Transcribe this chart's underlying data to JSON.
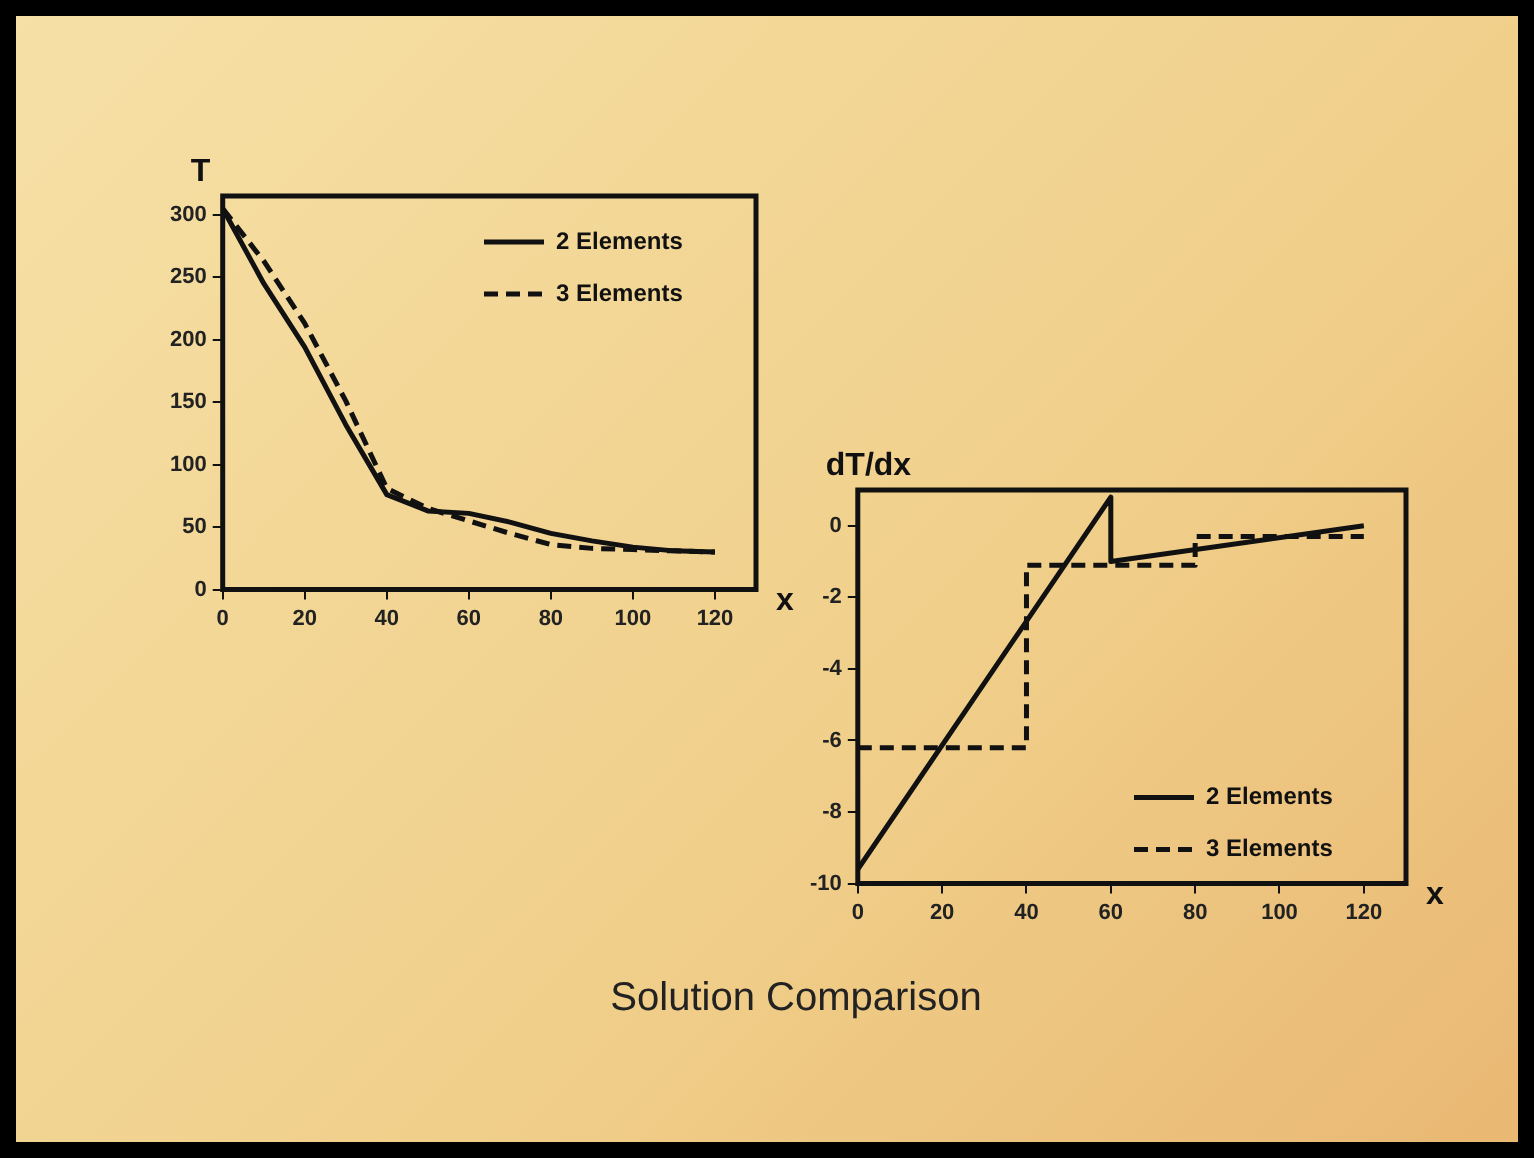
{
  "chart_data": [
    {
      "type": "line",
      "ylabel": "T",
      "xlabel": "x",
      "xlim": [
        0,
        130
      ],
      "xticks": [
        0,
        20,
        40,
        60,
        80,
        100,
        120
      ],
      "ylim": [
        0,
        315
      ],
      "yticks": [
        0,
        50,
        100,
        150,
        200,
        250,
        300
      ],
      "grid": false,
      "legend": "top right",
      "marker": "none",
      "series": [
        {
          "name": "2 Elements",
          "color": "#111111",
          "line_style": "solid",
          "x": [
            0,
            10,
            20,
            30,
            40,
            50,
            60,
            70,
            80,
            90,
            100,
            110,
            120
          ],
          "values": [
            305,
            245,
            194,
            132,
            76,
            63,
            61,
            54,
            45,
            39,
            34,
            31,
            30
          ]
        },
        {
          "name": "3 Elements",
          "color": "#111111",
          "line_style": "dashed",
          "x": [
            0,
            10,
            20,
            30,
            40,
            50,
            60,
            70,
            80,
            90,
            100,
            110,
            120
          ],
          "values": [
            305,
            263,
            213,
            151,
            81,
            65,
            55,
            45,
            36,
            33,
            32,
            31,
            30
          ]
        }
      ]
    },
    {
      "type": "line",
      "ylabel": "dT/dx",
      "xlabel": "x",
      "xlim": [
        0,
        130
      ],
      "xticks": [
        0,
        20,
        40,
        60,
        80,
        100,
        120
      ],
      "ylim": [
        -10,
        1
      ],
      "yticks": [
        0,
        -2,
        -4,
        -6,
        -8,
        -10
      ],
      "grid": false,
      "legend": "bottom right",
      "marker": "none",
      "annotations": [
        "Solution Comparison"
      ],
      "series": [
        {
          "name": "2 Elements",
          "color": "#111111",
          "line_style": "solid",
          "x": [
            0,
            60,
            60,
            120
          ],
          "values": [
            -9.6,
            0.8,
            -1,
            0
          ]
        },
        {
          "name": "3 Elements",
          "color": "#111111",
          "line_style": "dashed",
          "x": [
            0,
            40,
            40,
            80,
            80,
            120
          ],
          "values": [
            -6.2,
            -6.2,
            -1.1,
            -1.1,
            -0.3,
            -0.3
          ]
        }
      ]
    }
  ]
}
